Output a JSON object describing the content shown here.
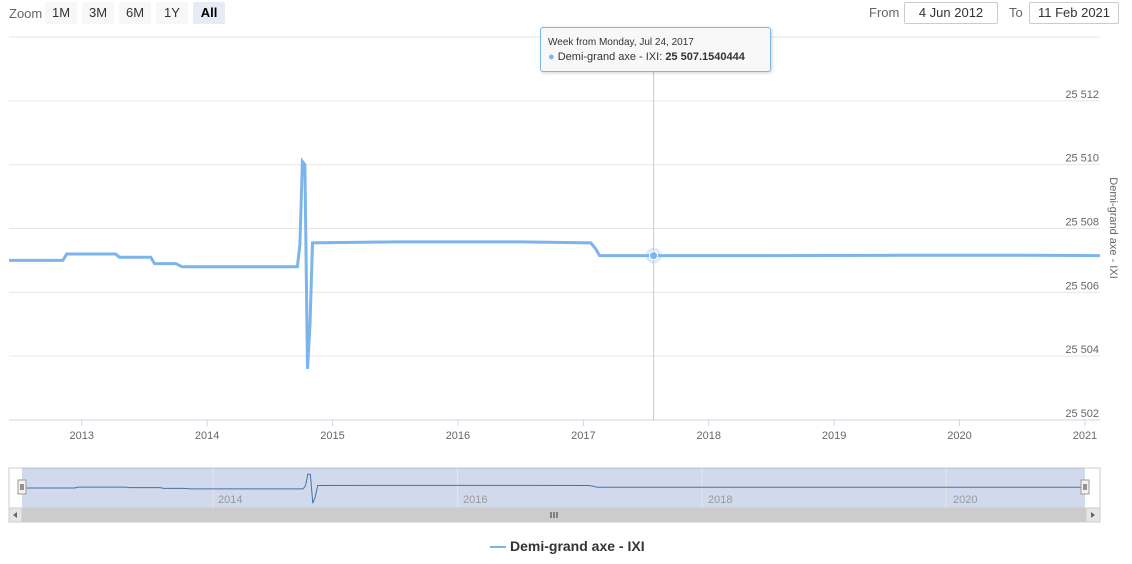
{
  "range_selector": {
    "zoom_label": "Zoom",
    "buttons": [
      "1M",
      "3M",
      "6M",
      "1Y",
      "All"
    ],
    "active_button": "All",
    "from_label": "From",
    "from_value": "4 Jun 2012",
    "to_label": "To",
    "to_value": "11 Feb 2021"
  },
  "tooltip": {
    "header": "Week from Monday, Jul 24, 2017",
    "series_label": "Demi-grand axe - IXI: ",
    "value": "25 507.1540444"
  },
  "navigator": {
    "tick_labels": [
      "2014",
      "2016",
      "2018",
      "2020"
    ]
  },
  "legend": {
    "label": "Demi-grand axe - IXI"
  },
  "colors": {
    "series": "#7cb5ec",
    "grid": "#e6e6e6",
    "navigator_mask": "rgba(102,133,194,0.3)",
    "scrollbar": "#cccccc"
  },
  "chart_data": {
    "type": "line",
    "title": "",
    "xlabel": "",
    "ylabel": "Demi-grand axe - IXI",
    "x_ticks": [
      "2013",
      "2014",
      "2015",
      "2016",
      "2017",
      "2018",
      "2019",
      "2020",
      "2021"
    ],
    "y_ticks": [
      "25 502",
      "25 504",
      "25 506",
      "25 508",
      "25 510",
      "25 512"
    ],
    "xlim": [
      2012.42,
      2021.12
    ],
    "ylim": [
      25502,
      25514
    ],
    "grid": true,
    "legend_position": "bottom-center",
    "crosshair_x": 2017.56,
    "series": [
      {
        "name": "Demi-grand axe - IXI",
        "x": [
          2012.42,
          2012.85,
          2012.88,
          2013.27,
          2013.3,
          2013.55,
          2013.58,
          2013.75,
          2013.8,
          2014.72,
          2014.74,
          2014.76,
          2014.78,
          2014.8,
          2014.82,
          2014.84,
          2015.5,
          2016.5,
          2017.06,
          2017.1,
          2017.13,
          2017.56,
          2018.5,
          2019.5,
          2020.5,
          2021.12
        ],
        "values": [
          25507.0,
          25507.0,
          25507.2,
          25507.2,
          25507.1,
          25507.1,
          25506.9,
          25506.9,
          25506.8,
          25506.8,
          25507.5,
          25510.1,
          25510.0,
          25503.6,
          25505.0,
          25507.55,
          25507.58,
          25507.58,
          25507.55,
          25507.35,
          25507.15,
          25507.15,
          25507.15,
          25507.16,
          25507.16,
          25507.15
        ]
      }
    ]
  }
}
